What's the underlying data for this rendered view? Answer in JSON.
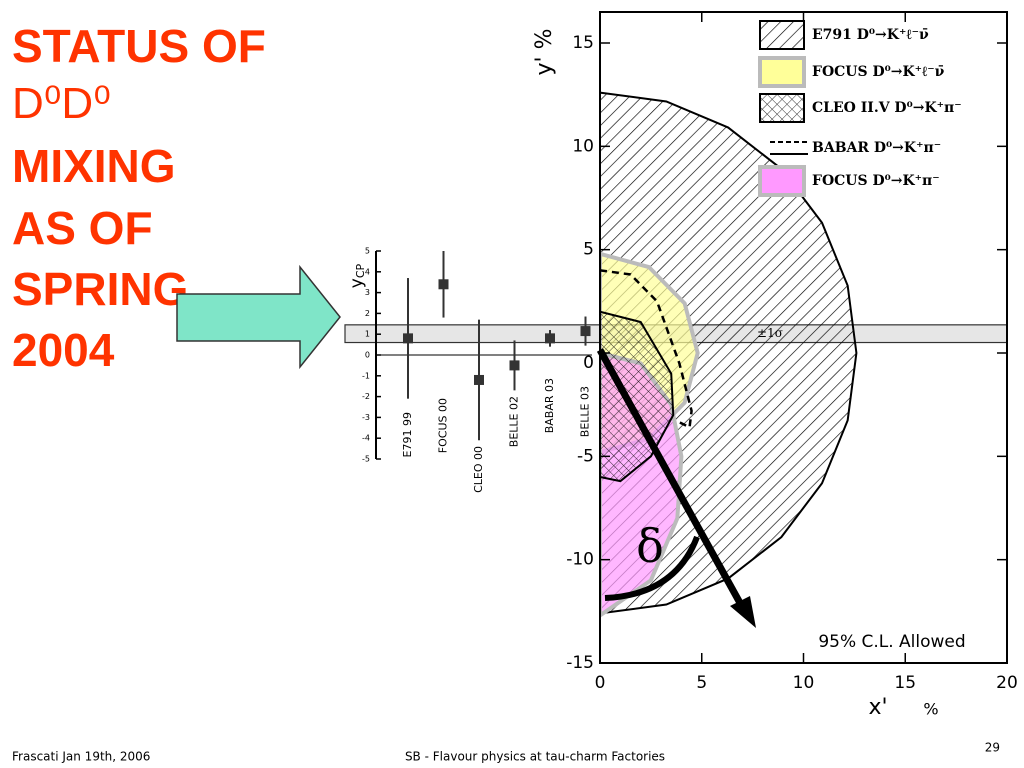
{
  "slide": {
    "title_lines": [
      "STATUS OF",
      "D⁰D⁰",
      "MIXING",
      "AS OF",
      "SPRING",
      "2004"
    ],
    "footer_left": "Frascati Jan 19th, 2006",
    "footer_center": "SB -  Flavour physics at tau-charm Factories",
    "page_number": "29"
  },
  "chart_data": [
    {
      "type": "errorbar",
      "ylabel": "y",
      "ylabel_sub": "CP",
      "categories": [
        "E791 99",
        "FOCUS 00",
        "CLEO 00",
        "BELLE 02",
        "BABAR 03",
        "BELLE 03"
      ],
      "values": [
        0.8,
        3.4,
        -1.2,
        -0.5,
        0.8,
        1.15
      ],
      "errors": [
        2.9,
        1.6,
        2.9,
        1.2,
        0.4,
        0.7
      ],
      "color": "#333333",
      "ylim": [
        -5,
        5
      ],
      "yticks": [
        -5,
        -4,
        -3,
        -2,
        -1,
        0,
        1,
        2,
        3,
        4,
        5
      ],
      "band": [
        0.6,
        1.45
      ],
      "band_label": "±1σ"
    },
    {
      "type": "region",
      "xlabel": "x'",
      "xlabel_unit": "%",
      "ylabel": "y' %",
      "xlim": [
        0,
        20
      ],
      "ylim": [
        -15,
        16.5
      ],
      "xticks": [
        0,
        5,
        10,
        15,
        20
      ],
      "yticks": [
        -15,
        -10,
        -5,
        0,
        5,
        10,
        15
      ],
      "annotations": [
        "95% C.L. Allowed",
        "δ"
      ],
      "series": [
        {
          "name": "E791 D⁰→K⁺ℓ⁻ν̄",
          "color": "#000000",
          "pattern": "hatch",
          "x": [
            0,
            3.26,
            6.3,
            8.91,
            10.91,
            12.17,
            12.6,
            12.17,
            10.91,
            8.91,
            6.3,
            3.26,
            0
          ],
          "y": [
            12.6,
            12.17,
            10.91,
            8.91,
            6.3,
            3.26,
            0,
            -3.26,
            -6.3,
            -8.91,
            -10.91,
            -12.17,
            -12.6
          ]
        },
        {
          "name": "FOCUS D⁰→K⁺ℓ⁻ν̄",
          "color": "#ffff99",
          "pattern": "solid",
          "x": [
            0,
            2.4,
            4.16,
            4.8,
            4.16,
            2.4,
            0
          ],
          "y": [
            4.8,
            4.16,
            2.4,
            0,
            -2.4,
            -4.16,
            -4.8
          ]
        },
        {
          "name": "CLEO II.V D⁰→K⁺π⁻",
          "color": "#000000",
          "pattern": "cross",
          "x": [
            0,
            2,
            3.5,
            3.6,
            2.5,
            1,
            0
          ],
          "y": [
            2,
            1.5,
            -1,
            -3,
            -5,
            -6.2,
            -6
          ]
        },
        {
          "name": "BABAR   D⁰→K⁺π⁻",
          "color": "#000000",
          "pattern": "dashed",
          "x": [
            0,
            1.5,
            2.8,
            3.9,
            4.5,
            4.4,
            3.8
          ],
          "y": [
            4,
            3.8,
            2.5,
            -0.5,
            -2.8,
            -3.6,
            -3.3
          ]
        },
        {
          "name": "FOCUS   D⁰→K⁺π⁻",
          "color": "#ff99ff",
          "pattern": "solid",
          "x": [
            0,
            2,
            3.5,
            4,
            3.8,
            2.5,
            0
          ],
          "y": [
            0,
            -0.5,
            -2.5,
            -5,
            -8,
            -11,
            -12.7
          ]
        }
      ]
    }
  ]
}
